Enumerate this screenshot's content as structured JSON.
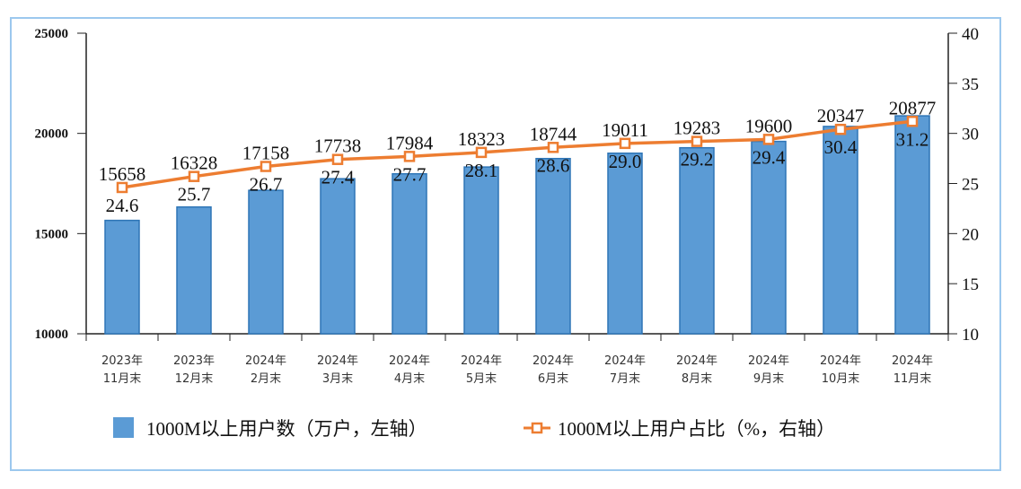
{
  "chart_data": {
    "type": "bar+line",
    "categories": [
      [
        "2023年",
        "11月末"
      ],
      [
        "2023年",
        "12月末"
      ],
      [
        "2024年",
        "2月末"
      ],
      [
        "2024年",
        "3月末"
      ],
      [
        "2024年",
        "4月末"
      ],
      [
        "2024年",
        "5月末"
      ],
      [
        "2024年",
        "6月末"
      ],
      [
        "2024年",
        "7月末"
      ],
      [
        "2024年",
        "8月末"
      ],
      [
        "2024年",
        "9月末"
      ],
      [
        "2024年",
        "10月末"
      ],
      [
        "2024年",
        "11月末"
      ]
    ],
    "series": [
      {
        "name": "1000M以上用户数（万户，左轴）",
        "type": "bar",
        "axis": "left",
        "color": "#5b9bd5",
        "values": [
          15658,
          16328,
          17158,
          17738,
          17984,
          18323,
          18744,
          19011,
          19283,
          19600,
          20347,
          20877
        ]
      },
      {
        "name": "1000M以上用户占比（%，右轴）",
        "type": "line",
        "axis": "right",
        "color": "#ed7d31",
        "values": [
          24.6,
          25.7,
          26.7,
          27.4,
          27.7,
          28.1,
          28.6,
          29.0,
          29.2,
          29.4,
          30.4,
          31.2
        ]
      }
    ],
    "left_axis": {
      "ylim": [
        10000,
        25000
      ],
      "ticks": [
        "10000",
        "15000",
        "20000",
        "25000"
      ]
    },
    "right_axis": {
      "ylim": [
        10,
        40
      ],
      "ticks": [
        "10",
        "15",
        "20",
        "25",
        "30",
        "35",
        "40"
      ]
    },
    "percent_labels": [
      "24.6",
      "25.7",
      "26.7",
      "27.4",
      "27.7",
      "28.1",
      "28.6",
      "29.0",
      "29.2",
      "29.4",
      "30.4",
      "31.2"
    ],
    "grid": false,
    "legend_position": "bottom"
  }
}
